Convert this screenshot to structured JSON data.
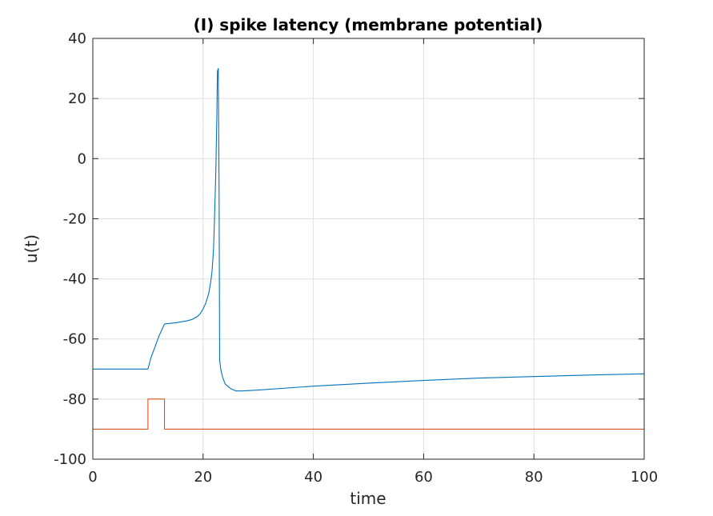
{
  "chart_data": {
    "type": "line",
    "title": "(I) spike latency (membrane potential)",
    "xlabel": "time",
    "ylabel": "u(t)",
    "xlim": [
      0,
      100
    ],
    "ylim": [
      -100,
      40
    ],
    "xticks": [
      0,
      20,
      40,
      60,
      80,
      100
    ],
    "yticks": [
      -100,
      -80,
      -60,
      -40,
      -20,
      0,
      20,
      40
    ],
    "grid": true,
    "legend": "none",
    "series": [
      {
        "color": "#0072BD",
        "x": [
          0,
          10,
          10.5,
          11,
          11.5,
          12,
          12.5,
          13,
          14,
          15,
          16,
          17,
          18,
          19,
          19.5,
          20,
          20.5,
          21,
          21.3,
          21.6,
          21.9,
          22.1,
          22.3,
          22.5,
          22.6,
          22.75,
          22.9,
          23.0,
          23.2,
          23.5,
          24,
          25,
          26,
          27,
          30,
          40,
          50,
          60,
          70,
          80,
          90,
          100
        ],
        "y": [
          -70,
          -70,
          -66.5,
          -64,
          -61.5,
          -59,
          -57,
          -55,
          -54.8,
          -54.6,
          -54.3,
          -54,
          -53.5,
          -52.5,
          -51.5,
          -50,
          -48,
          -45,
          -42,
          -38,
          -30,
          -18,
          -5,
          15,
          29,
          30,
          -10,
          -67,
          -70,
          -72.5,
          -75,
          -76.5,
          -77.3,
          -77.3,
          -77,
          -75.7,
          -74.7,
          -73.8,
          -73,
          -72.5,
          -72,
          -71.6
        ]
      },
      {
        "color": "#D95319",
        "x": [
          0,
          10,
          10,
          13,
          13,
          100
        ],
        "y": [
          -90,
          -90,
          -80,
          -80,
          -90,
          -90
        ]
      }
    ]
  }
}
